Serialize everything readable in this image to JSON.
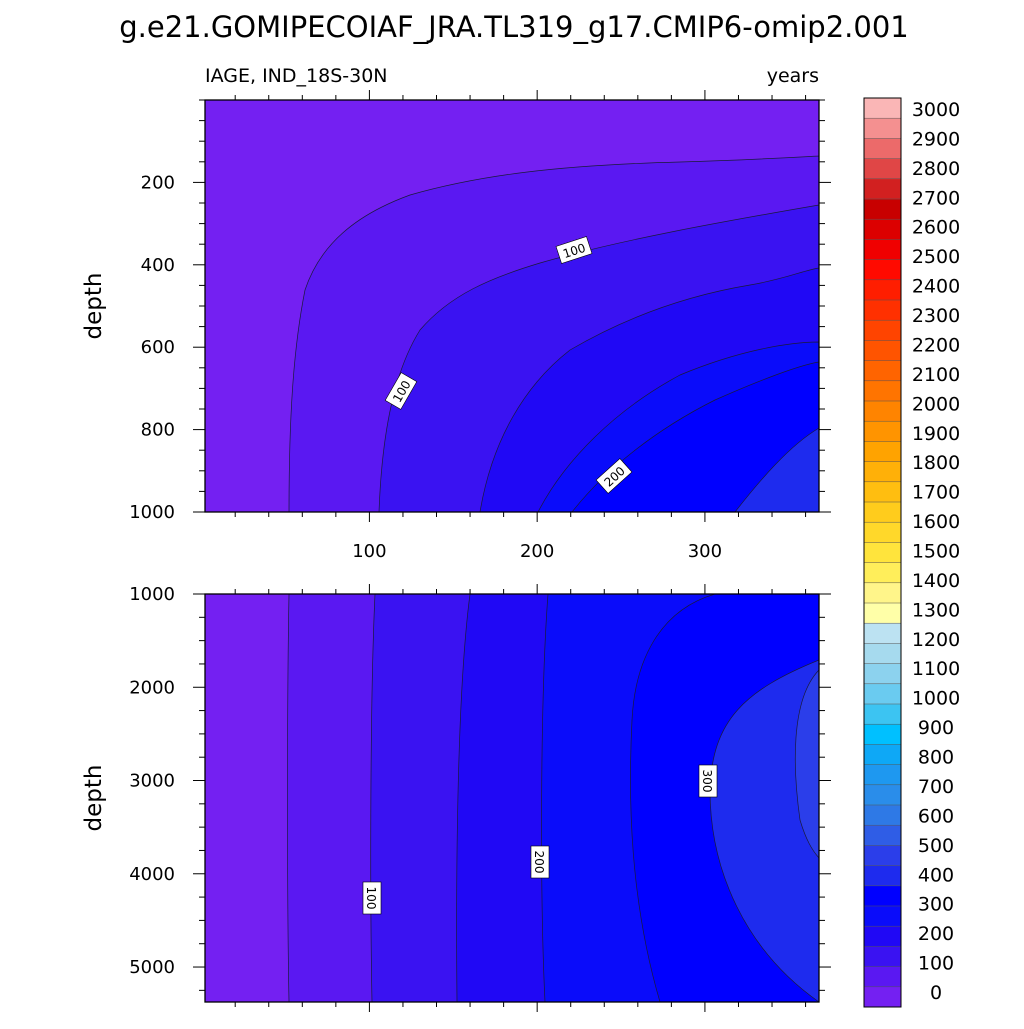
{
  "chart_data": {
    "type": "heatmap",
    "title": "g.e21.GOMIPECOIAF_JRA.TL319_g17.CMIP6-omip2.001",
    "left_subtitle": "IAGE, IND_18S-30N",
    "right_subtitle": "years",
    "panels": [
      {
        "name": "upper",
        "ylabel": "depth",
        "ylim": [
          0,
          1000
        ],
        "y_reversed": true,
        "yticks": [
          200,
          400,
          600,
          800,
          1000
        ],
        "xlim": [
          2,
          368
        ],
        "xticks": [
          100,
          200,
          300
        ],
        "contour_labels": [
          "100",
          "100",
          "200"
        ]
      },
      {
        "name": "lower",
        "ylabel": "depth",
        "ylim": [
          1000,
          5375
        ],
        "y_reversed": true,
        "yticks": [
          1000,
          2000,
          3000,
          4000,
          5000
        ],
        "xlim": [
          2,
          368
        ],
        "xticks": [
          100,
          200,
          300
        ],
        "contour_labels": [
          "100",
          "200",
          "300"
        ]
      }
    ],
    "colorbar": {
      "labels": [
        "0",
        "100",
        "200",
        "300",
        "400",
        "500",
        "600",
        "700",
        "800",
        "900",
        "1000",
        "1100",
        "1200",
        "1300",
        "1400",
        "1500",
        "1600",
        "1700",
        "1800",
        "1900",
        "2000",
        "2100",
        "2200",
        "2300",
        "2400",
        "2500",
        "2600",
        "2700",
        "2800",
        "2900",
        "3000"
      ],
      "colors": [
        "#7420F2",
        "#5A18F2",
        "#3A12F2",
        "#2008F5",
        "#0A0CFA",
        "#0000FF",
        "#1E2BEE",
        "#2B3EEA",
        "#2F5DE6",
        "#2E79E6",
        "#2A8DEA",
        "#1E98F0",
        "#0EA8F6",
        "#00C0FF",
        "#3CC4F2",
        "#6ACBF0",
        "#8CD2EE",
        "#A6DAEE",
        "#BCE2F2",
        "#FFFFA8",
        "#FFF58A",
        "#FFEE5A",
        "#FFE43C",
        "#FFD82A",
        "#FFCC1C",
        "#FFBE10",
        "#FFB008",
        "#FFA300",
        "#FF9400",
        "#FF8400",
        "#FF7400",
        "#FF6400",
        "#FF5400",
        "#FF4400",
        "#FF3000",
        "#FF1E00",
        "#FF0A00",
        "#F00000",
        "#DC0000",
        "#C80000",
        "#D22020",
        "#E04646",
        "#EC6A6A",
        "#F49090",
        "#FAB6B6"
      ]
    },
    "grid": false,
    "legend": "right"
  }
}
